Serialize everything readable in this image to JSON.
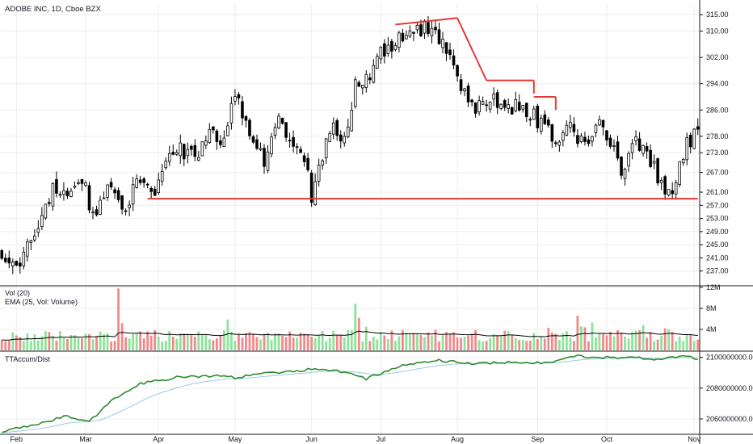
{
  "header": {
    "symbol_line": "ADOBE INC, 1D, Cboe BZX"
  },
  "colors": {
    "up": "#3dd45c",
    "down": "#ef5350",
    "up_vol": "#8ee39a",
    "down_vol": "#f08a8a",
    "candle_up_body": "#ffffff",
    "candle_down_body": "#000000",
    "ema": "#000000",
    "accum_main": "#2e8b2e",
    "accum_signal": "#9cc9e8",
    "trendline": "#e53935",
    "grid": "#ededed",
    "axis_text": "#131722"
  },
  "chart_data": [
    {
      "type": "candlestick",
      "pane": "price",
      "symbol": "ADOBE INC",
      "interval": "1D",
      "exchange": "Cboe BZX",
      "ylim": [
        233,
        318
      ],
      "y_ticks": [
        "315.00",
        "310.00",
        "302.00",
        "294.00",
        "286.00",
        "278.00",
        "273.00",
        "267.00",
        "261.00",
        "257.00",
        "253.00",
        "249.00",
        "245.00",
        "241.00",
        "237.00"
      ],
      "x_tick_labels": [
        "Feb",
        "Mar",
        "Apr",
        "May",
        "Jun",
        "Jul",
        "Aug",
        "Sep",
        "Oct",
        "Nov"
      ],
      "x_tick_days": [
        4,
        23,
        43,
        64,
        85,
        104,
        125,
        147,
        166,
        190
      ],
      "price_anchors": [
        [
          0,
          243
        ],
        [
          5,
          238
        ],
        [
          10,
          252
        ],
        [
          14,
          262
        ],
        [
          18,
          259
        ],
        [
          22,
          266
        ],
        [
          25,
          254
        ],
        [
          29,
          263
        ],
        [
          34,
          257
        ],
        [
          38,
          266
        ],
        [
          42,
          261
        ],
        [
          45,
          272
        ],
        [
          49,
          274
        ],
        [
          53,
          272
        ],
        [
          57,
          280
        ],
        [
          61,
          277
        ],
        [
          64,
          290
        ],
        [
          68,
          280
        ],
        [
          72,
          271
        ],
        [
          76,
          283
        ],
        [
          80,
          277
        ],
        [
          83,
          272
        ],
        [
          85,
          259
        ],
        [
          88,
          273
        ],
        [
          91,
          281
        ],
        [
          94,
          276
        ],
        [
          97,
          293
        ],
        [
          101,
          297
        ],
        [
          104,
          303
        ],
        [
          108,
          307
        ],
        [
          111,
          309
        ],
        [
          116,
          311
        ],
        [
          120,
          308
        ],
        [
          124,
          302
        ],
        [
          127,
          290
        ],
        [
          130,
          287
        ],
        [
          134,
          290
        ],
        [
          138,
          285
        ],
        [
          142,
          288
        ],
        [
          146,
          284
        ],
        [
          149,
          281
        ],
        [
          152,
          276
        ],
        [
          156,
          282
        ],
        [
          160,
          274
        ],
        [
          164,
          282
        ],
        [
          167,
          277
        ],
        [
          170,
          267
        ],
        [
          174,
          276
        ],
        [
          177,
          272
        ],
        [
          181,
          264
        ],
        [
          184,
          260
        ],
        [
          188,
          276
        ],
        [
          191,
          279
        ]
      ],
      "trend_lines": [
        {
          "name": "support",
          "points": [
            [
              40,
              259
            ],
            [
              191,
              259
            ]
          ]
        },
        {
          "name": "top-ridge",
          "points": [
            [
              108,
              312
            ],
            [
              125,
              314
            ]
          ]
        },
        {
          "name": "descent",
          "points": [
            [
              125,
              314
            ],
            [
              133,
              295
            ]
          ]
        },
        {
          "name": "step-1",
          "points": [
            [
              133,
              295
            ],
            [
              146,
              295
            ]
          ]
        },
        {
          "name": "step-1-drop",
          "points": [
            [
              146,
              295
            ],
            [
              146,
              291
            ]
          ]
        },
        {
          "name": "step-2",
          "points": [
            [
              146,
              290
            ],
            [
              152,
              290
            ]
          ]
        },
        {
          "name": "step-2-drop",
          "points": [
            [
              152,
              290
            ],
            [
              152,
              286
            ]
          ]
        }
      ]
    },
    {
      "type": "bar",
      "pane": "volume",
      "title": "Vol (20)",
      "subtitle": "EMA (25, Vol: Volume)",
      "ylim": [
        0,
        12
      ],
      "y_ticks": [
        "12M",
        "8M",
        "4M"
      ],
      "y_tick_values": [
        12,
        8,
        4
      ],
      "unit": "M",
      "spikes": [
        [
          32,
          11.8
        ],
        [
          33,
          5.2
        ],
        [
          62,
          5.9
        ],
        [
          97,
          8.9
        ],
        [
          98,
          6.2
        ],
        [
          100,
          4.5
        ],
        [
          102,
          2.6
        ],
        [
          150,
          4.3
        ],
        [
          158,
          6.6
        ],
        [
          159,
          4.6
        ],
        [
          160,
          4.4
        ],
        [
          162,
          5.3
        ],
        [
          176,
          4.8
        ],
        [
          182,
          4.2
        ],
        [
          183,
          4.0
        ]
      ],
      "baseline": 3.0,
      "ema_level": 3.2
    },
    {
      "type": "line",
      "pane": "accumulation",
      "title": "TTAccum/Dist",
      "ylim": [
        2050000000,
        2103000000
      ],
      "y_ticks": [
        "2100000000.00",
        "2080000000.00",
        "2060000000.00"
      ],
      "y_tick_values": [
        2100000000,
        2080000000,
        2060000000
      ],
      "anchors": [
        [
          0,
          2052000000
        ],
        [
          10,
          2057000000
        ],
        [
          18,
          2062000000
        ],
        [
          24,
          2058000000
        ],
        [
          30,
          2072000000
        ],
        [
          38,
          2083000000
        ],
        [
          48,
          2087000000
        ],
        [
          58,
          2088000000
        ],
        [
          64,
          2087000000
        ],
        [
          72,
          2090000000
        ],
        [
          80,
          2091000000
        ],
        [
          86,
          2093000000
        ],
        [
          95,
          2090000000
        ],
        [
          100,
          2086000000
        ],
        [
          110,
          2095000000
        ],
        [
          120,
          2098000000
        ],
        [
          130,
          2096000000
        ],
        [
          140,
          2097000000
        ],
        [
          150,
          2096000000
        ],
        [
          158,
          2101000000
        ],
        [
          165,
          2100000000
        ],
        [
          172,
          2100000000
        ],
        [
          180,
          2099000000
        ],
        [
          188,
          2101000000
        ],
        [
          191,
          2099000000
        ]
      ]
    }
  ]
}
